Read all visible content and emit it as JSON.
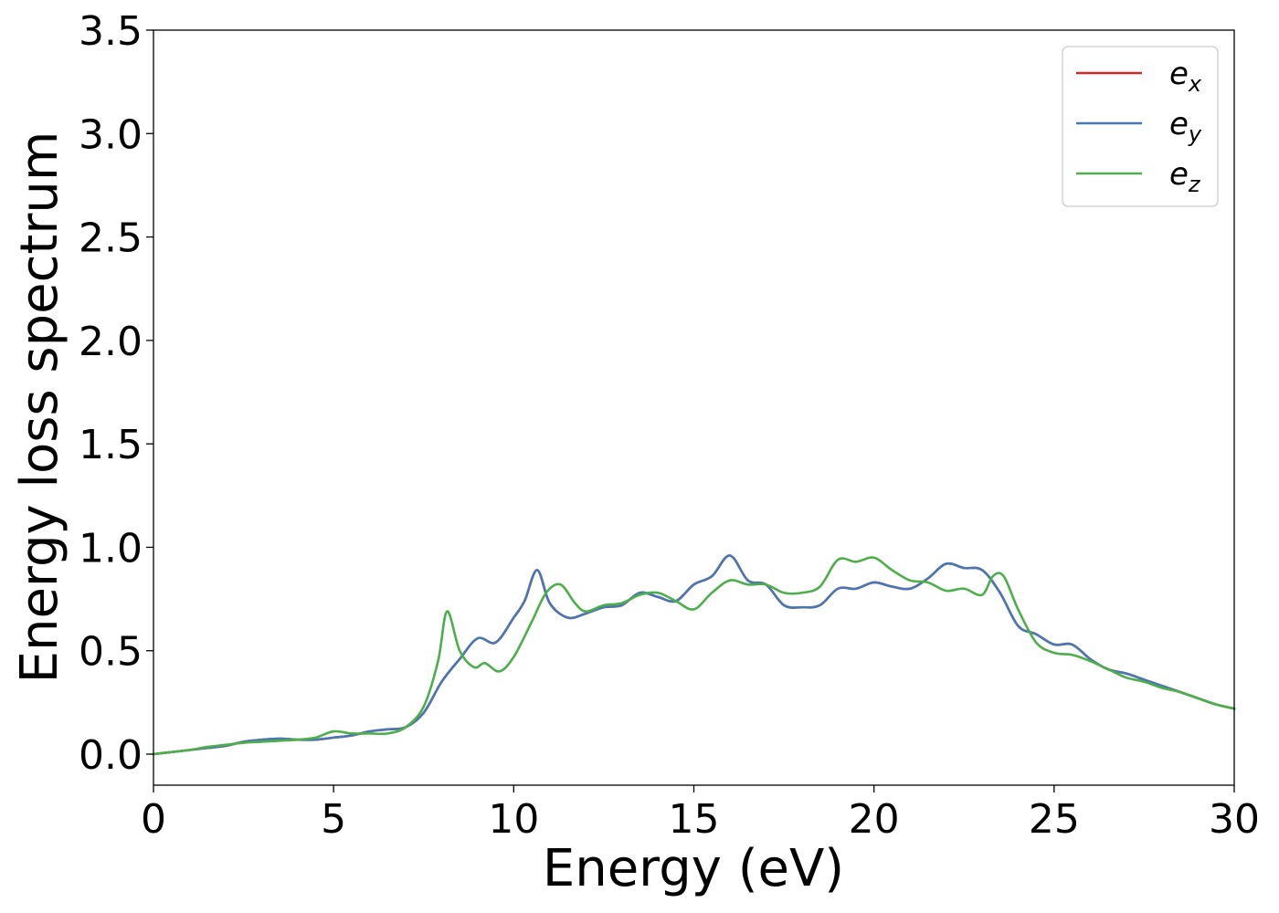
{
  "chart_data": {
    "type": "line",
    "title": "",
    "xlabel": "Energy (eV)",
    "ylabel": "Energy loss spectrum",
    "xlim": [
      0,
      30
    ],
    "ylim": [
      -0.15,
      3.5
    ],
    "xticks": [
      0,
      5,
      10,
      15,
      20,
      25,
      30
    ],
    "yticks": [
      0.0,
      0.5,
      1.0,
      1.5,
      2.0,
      2.5,
      3.0,
      3.5
    ],
    "xtick_labels": [
      "0",
      "5",
      "10",
      "15",
      "20",
      "25",
      "30"
    ],
    "ytick_labels": [
      "0.0",
      "0.5",
      "1.0",
      "1.5",
      "2.0",
      "2.5",
      "3.0",
      "3.5"
    ],
    "grid": false,
    "legend_position": "top-right",
    "series": [
      {
        "name": "e_x",
        "label_base": "e",
        "label_sub": "x",
        "color": "#d62728",
        "x": [
          0,
          0.5,
          1,
          1.5,
          2,
          2.5,
          3,
          3.5,
          4,
          4.5,
          5,
          5.5,
          6,
          6.5,
          7,
          7.5,
          8,
          8.5,
          9,
          9.5,
          10,
          10.3,
          10.65,
          11,
          11.5,
          12,
          12.5,
          13,
          13.5,
          14,
          14.5,
          15,
          15.5,
          16,
          16.5,
          17,
          17.5,
          18,
          18.5,
          19,
          19.5,
          20,
          20.5,
          21,
          21.5,
          22,
          22.5,
          23,
          23.5,
          24,
          24.5,
          25,
          25.5,
          26,
          26.5,
          27,
          27.5,
          28,
          28.5,
          29,
          29.5,
          30
        ],
        "y": [
          0.0,
          0.01,
          0.02,
          0.03,
          0.04,
          0.06,
          0.07,
          0.075,
          0.07,
          0.07,
          0.08,
          0.09,
          0.11,
          0.12,
          0.13,
          0.2,
          0.35,
          0.46,
          0.56,
          0.54,
          0.66,
          0.74,
          0.89,
          0.73,
          0.66,
          0.68,
          0.71,
          0.72,
          0.78,
          0.76,
          0.74,
          0.82,
          0.86,
          0.96,
          0.84,
          0.82,
          0.72,
          0.71,
          0.72,
          0.8,
          0.8,
          0.83,
          0.81,
          0.8,
          0.85,
          0.92,
          0.9,
          0.89,
          0.78,
          0.62,
          0.58,
          0.53,
          0.53,
          0.46,
          0.41,
          0.39,
          0.36,
          0.33,
          0.3,
          0.27,
          0.24,
          0.22
        ]
      },
      {
        "name": "e_y",
        "label_base": "e",
        "label_sub": "y",
        "color": "#4878b4",
        "x": [
          0,
          0.5,
          1,
          1.5,
          2,
          2.5,
          3,
          3.5,
          4,
          4.5,
          5,
          5.5,
          6,
          6.5,
          7,
          7.5,
          8,
          8.5,
          9,
          9.5,
          10,
          10.3,
          10.65,
          11,
          11.5,
          12,
          12.5,
          13,
          13.5,
          14,
          14.5,
          15,
          15.5,
          16,
          16.5,
          17,
          17.5,
          18,
          18.5,
          19,
          19.5,
          20,
          20.5,
          21,
          21.5,
          22,
          22.5,
          23,
          23.5,
          24,
          24.5,
          25,
          25.5,
          26,
          26.5,
          27,
          27.5,
          28,
          28.5,
          29,
          29.5,
          30
        ],
        "y": [
          0.0,
          0.01,
          0.02,
          0.03,
          0.04,
          0.06,
          0.07,
          0.075,
          0.07,
          0.07,
          0.08,
          0.09,
          0.11,
          0.12,
          0.13,
          0.2,
          0.35,
          0.46,
          0.56,
          0.54,
          0.66,
          0.74,
          0.89,
          0.73,
          0.66,
          0.68,
          0.71,
          0.72,
          0.78,
          0.76,
          0.74,
          0.82,
          0.86,
          0.96,
          0.84,
          0.82,
          0.72,
          0.71,
          0.72,
          0.8,
          0.8,
          0.83,
          0.81,
          0.8,
          0.85,
          0.92,
          0.9,
          0.89,
          0.78,
          0.62,
          0.58,
          0.53,
          0.53,
          0.46,
          0.41,
          0.39,
          0.36,
          0.33,
          0.3,
          0.27,
          0.24,
          0.22
        ]
      },
      {
        "name": "e_z",
        "label_base": "e",
        "label_sub": "z",
        "color": "#4daf4a",
        "x": [
          0,
          0.5,
          1,
          1.5,
          2,
          2.5,
          3,
          3.5,
          4,
          4.5,
          5,
          5.5,
          6,
          6.5,
          7,
          7.5,
          7.9,
          8.15,
          8.5,
          8.9,
          9.2,
          9.6,
          10,
          10.5,
          10.9,
          11.3,
          11.7,
          12,
          12.5,
          13,
          13.5,
          14,
          14.5,
          15,
          15.5,
          16,
          16.5,
          17,
          17.5,
          18,
          18.5,
          19,
          19.5,
          20,
          20.5,
          21,
          21.5,
          22,
          22.5,
          23,
          23.3,
          23.6,
          24,
          24.5,
          25,
          25.5,
          26,
          26.5,
          27,
          27.5,
          28,
          28.5,
          29,
          29.5,
          30
        ],
        "y": [
          0.0,
          0.01,
          0.02,
          0.035,
          0.045,
          0.055,
          0.06,
          0.065,
          0.07,
          0.08,
          0.11,
          0.1,
          0.1,
          0.1,
          0.13,
          0.23,
          0.45,
          0.69,
          0.5,
          0.42,
          0.44,
          0.4,
          0.47,
          0.64,
          0.78,
          0.82,
          0.73,
          0.69,
          0.72,
          0.73,
          0.77,
          0.78,
          0.74,
          0.7,
          0.78,
          0.84,
          0.82,
          0.82,
          0.78,
          0.78,
          0.81,
          0.94,
          0.93,
          0.95,
          0.89,
          0.84,
          0.83,
          0.79,
          0.8,
          0.77,
          0.86,
          0.86,
          0.7,
          0.54,
          0.49,
          0.48,
          0.45,
          0.41,
          0.37,
          0.35,
          0.32,
          0.3,
          0.27,
          0.24,
          0.22
        ]
      }
    ]
  }
}
